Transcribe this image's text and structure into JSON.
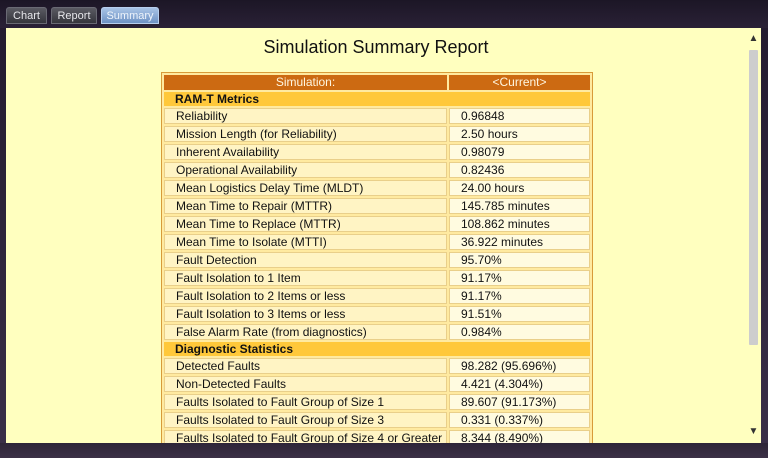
{
  "tabs": [
    {
      "label": "Chart"
    },
    {
      "label": "Report"
    },
    {
      "label": "Summary"
    }
  ],
  "title": "Simulation Summary Report",
  "table": {
    "header": [
      "Simulation:",
      "<Current>"
    ],
    "sections": [
      {
        "name": "RAM-T Metrics",
        "rows": [
          [
            "Reliability",
            "0.96848"
          ],
          [
            "Mission Length (for Reliability)",
            "2.50 hours"
          ],
          [
            "Inherent Availability",
            "0.98079"
          ],
          [
            "Operational Availability",
            "0.82436"
          ],
          [
            "Mean Logistics Delay Time (MLDT)",
            "24.00 hours"
          ],
          [
            "Mean Time to Repair (MTTR)",
            "145.785 minutes"
          ],
          [
            "Mean Time to Replace (MTTR)",
            "108.862 minutes"
          ],
          [
            "Mean Time to Isolate (MTTI)",
            "36.922 minutes"
          ],
          [
            "Fault Detection",
            "95.70%"
          ],
          [
            "Fault Isolation to 1 Item",
            "91.17%"
          ],
          [
            "Fault Isolation to 2 Items or less",
            "91.17%"
          ],
          [
            "Fault Isolation to 3 Items or less",
            "91.51%"
          ],
          [
            "False Alarm Rate (from diagnostics)",
            "0.984%"
          ]
        ]
      },
      {
        "name": "Diagnostic Statistics",
        "rows": [
          [
            "Detected Faults",
            "98.282 (95.696%)"
          ],
          [
            "Non-Detected Faults",
            "4.421 (4.304%)"
          ],
          [
            "Faults Isolated to Fault Group of Size 1",
            "89.607 (91.173%)"
          ],
          [
            "Faults Isolated to Fault Group of Size 3",
            "0.331 (0.337%)"
          ],
          [
            "Faults Isolated to Fault Group of Size 4 or Greater",
            "8.344 (8.490%)"
          ]
        ]
      }
    ]
  },
  "scrollbar": {
    "up_icon": "chevron-up-icon",
    "down_icon": "chevron-down-icon"
  }
}
